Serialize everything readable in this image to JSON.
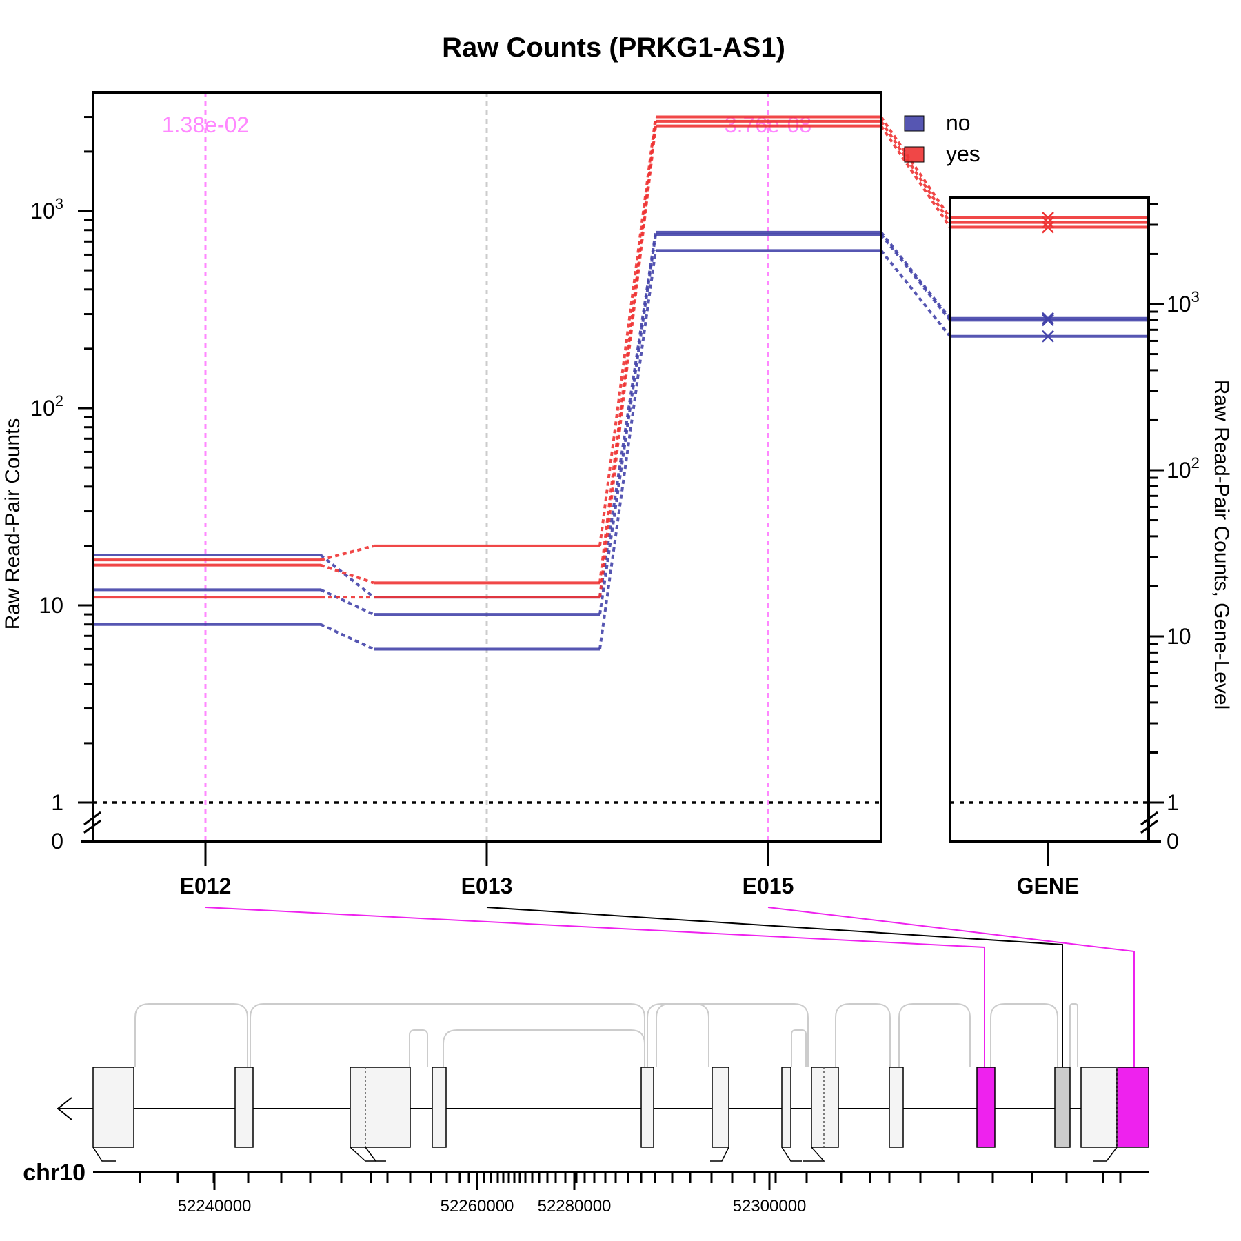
{
  "chart_data": [
    {
      "type": "line",
      "title": "Raw Counts (PRKG1-AS1)",
      "ylabel": "Raw Read-Pair Counts",
      "y_scale": "log",
      "y_ticks": [
        {
          "value": 0,
          "base": "0",
          "exp": ""
        },
        {
          "value": 1,
          "base": "1",
          "exp": ""
        },
        {
          "value": 10,
          "base": "10",
          "exp": ""
        },
        {
          "value": 100,
          "base": "10",
          "exp": "2"
        },
        {
          "value": 1000,
          "base": "10",
          "exp": "3"
        }
      ],
      "categories": [
        "E012",
        "E013",
        "E015"
      ],
      "pvalues": [
        {
          "exon": "E012",
          "label": "1.38e-02",
          "color": "#ff88ff"
        },
        {
          "exon": "E015",
          "label": "3.76e-08",
          "color": "#ff88ff"
        }
      ],
      "legend": {
        "position": "top-right",
        "entries": [
          {
            "name": "no",
            "color": "#4444aa"
          },
          {
            "name": "yes",
            "color": "#ee3333"
          }
        ]
      },
      "series": [
        {
          "name": "no",
          "color": "#4444aa",
          "values": [
            18,
            11,
            780
          ]
        },
        {
          "name": "no",
          "color": "#4444aa",
          "values": [
            12,
            9,
            760
          ]
        },
        {
          "name": "no",
          "color": "#4444aa",
          "values": [
            8,
            6,
            630
          ]
        },
        {
          "name": "yes",
          "color": "#ee3333",
          "values": [
            17,
            20,
            3000
          ]
        },
        {
          "name": "yes",
          "color": "#ee3333",
          "values": [
            16,
            13,
            2850
          ]
        },
        {
          "name": "yes",
          "color": "#ee3333",
          "values": [
            11,
            11,
            2700
          ]
        }
      ],
      "reference_line": {
        "value": 1,
        "style": "dotted"
      }
    },
    {
      "type": "scatter",
      "ylabel": "Raw Read-Pair Counts, Gene-Level",
      "y_scale": "log",
      "y_ticks": [
        {
          "value": 0,
          "base": "0",
          "exp": ""
        },
        {
          "value": 1,
          "base": "1",
          "exp": ""
        },
        {
          "value": 10,
          "base": "10",
          "exp": ""
        },
        {
          "value": 100,
          "base": "10",
          "exp": "2"
        },
        {
          "value": 1000,
          "base": "10",
          "exp": "3"
        }
      ],
      "categories": [
        "GENE"
      ],
      "series": [
        {
          "name": "no",
          "color": "#4444aa",
          "values": [
            820
          ]
        },
        {
          "name": "no",
          "color": "#4444aa",
          "values": [
            800
          ]
        },
        {
          "name": "no",
          "color": "#4444aa",
          "values": [
            640
          ]
        },
        {
          "name": "yes",
          "color": "#ee3333",
          "values": [
            3300
          ]
        },
        {
          "name": "yes",
          "color": "#ee3333",
          "values": [
            3100
          ]
        },
        {
          "name": "yes",
          "color": "#ee3333",
          "values": [
            2900
          ]
        }
      ]
    }
  ],
  "genome_track": {
    "chromosome": "chr10",
    "tick_labels": [
      "52240000",
      "52260000",
      "52280000",
      "52300000"
    ],
    "strand": "minus",
    "highlight_color": "#ee22ee",
    "link_colors": {
      "E012": "#ee22ee",
      "E013": "#000000",
      "E015": "#ee22ee"
    }
  }
}
